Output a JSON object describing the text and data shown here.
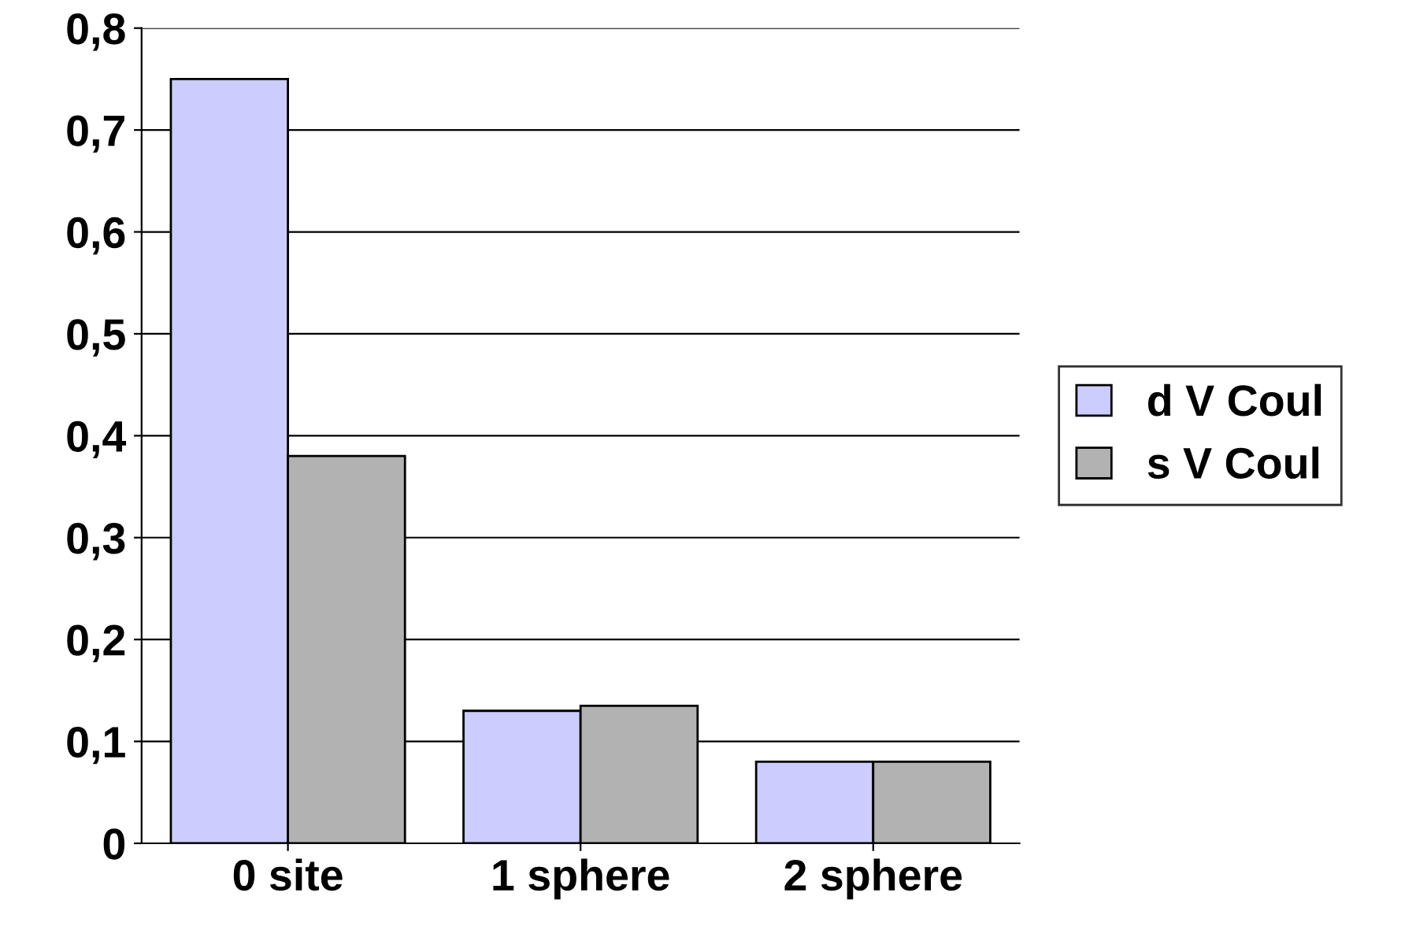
{
  "chart_data": {
    "type": "bar",
    "categories": [
      "0 site",
      "1 sphere",
      "2 sphere"
    ],
    "series": [
      {
        "name": "d V Coul",
        "color": "#ccccff",
        "values": [
          0.75,
          0.13,
          0.08
        ]
      },
      {
        "name": "s V Coul",
        "color": "#b2b2b2",
        "values": [
          0.38,
          0.135,
          0.08
        ]
      }
    ],
    "ylim": [
      0,
      0.8
    ],
    "yticks": [
      {
        "value": 0,
        "label": "0"
      },
      {
        "value": 0.1,
        "label": "0,1"
      },
      {
        "value": 0.2,
        "label": "0,2"
      },
      {
        "value": 0.3,
        "label": "0,3"
      },
      {
        "value": 0.4,
        "label": "0,4"
      },
      {
        "value": 0.5,
        "label": "0,5"
      },
      {
        "value": 0.6,
        "label": "0,6"
      },
      {
        "value": 0.7,
        "label": "0,7"
      },
      {
        "value": 0.8,
        "label": "0,8"
      }
    ],
    "grid": "y",
    "legend": "right"
  }
}
